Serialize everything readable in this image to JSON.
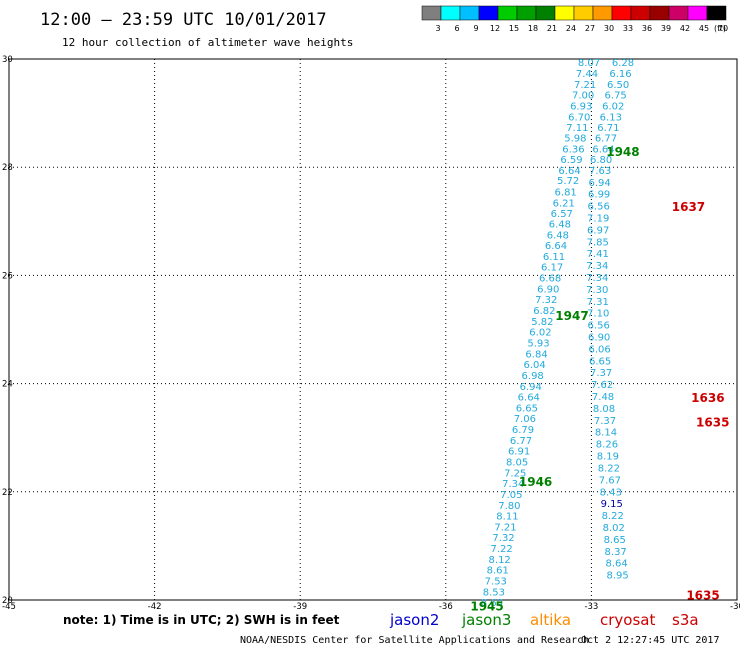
{
  "header": {
    "title": "12:00 – 23:59 UTC 10/01/2017",
    "subtitle": "12 hour collection of altimeter wave heights"
  },
  "colorbar": {
    "colors": [
      "#7f7f7f",
      "#00ffff",
      "#00bfff",
      "#0000ff",
      "#00cc00",
      "#00a000",
      "#008000",
      "#ffff00",
      "#ffcc00",
      "#ff9900",
      "#ff0000",
      "#cc0000",
      "#990000",
      "#cc0066",
      "#ff00ff",
      "#000000"
    ],
    "labels": [
      "3",
      "6",
      "9",
      "12",
      "15",
      "18",
      "21",
      "24",
      "27",
      "30",
      "33",
      "36",
      "39",
      "42",
      "45",
      "70"
    ],
    "unit": "(ft)"
  },
  "note_text": "note:  1) Time is in UTC;  2) SWH is in feet",
  "satellites": [
    {
      "name": "jason2",
      "color": "#0000cc"
    },
    {
      "name": "jason3",
      "color": "#008000"
    },
    {
      "name": "altika",
      "color": "#ff8c00"
    },
    {
      "name": "cryosat",
      "color": "#cc0000"
    },
    {
      "name": "s3a",
      "color": "#cc0000"
    }
  ],
  "footer": {
    "agency": "NOAA/NESDIS Center for Satellite Applications and Research",
    "timestamp": "Oct  2 12:27:45 UTC 2017"
  },
  "chart_data": {
    "type": "scatter",
    "xlim": [
      -45,
      -30
    ],
    "ylim": [
      20,
      30
    ],
    "xticks": [
      "-45",
      "-42",
      "-39",
      "-36",
      "-33",
      "-30"
    ],
    "yticks": [
      "20",
      "22",
      "24",
      "26",
      "28",
      "30"
    ],
    "grid": true,
    "value_color": "#22aadd",
    "track_left": {
      "points": [
        {
          "x": -33.05,
          "y": 29.94,
          "v": "8.07"
        },
        {
          "x": -33.09,
          "y": 29.74,
          "v": "7.44"
        },
        {
          "x": -33.13,
          "y": 29.54,
          "v": "7.21"
        },
        {
          "x": -33.17,
          "y": 29.34,
          "v": "7.00"
        },
        {
          "x": -33.21,
          "y": 29.14,
          "v": "6.93"
        },
        {
          "x": -33.25,
          "y": 28.94,
          "v": "6.70"
        },
        {
          "x": -33.29,
          "y": 28.74,
          "v": "7.11"
        },
        {
          "x": -33.33,
          "y": 28.55,
          "v": "5.98"
        },
        {
          "x": -33.37,
          "y": 28.35,
          "v": "6.36"
        },
        {
          "x": -33.41,
          "y": 28.15,
          "v": "6.59"
        },
        {
          "x": -33.45,
          "y": 27.95,
          "v": "6.64"
        },
        {
          "x": -33.48,
          "y": 27.76,
          "v": "5.72"
        },
        {
          "x": -33.53,
          "y": 27.55,
          "v": "6.81"
        },
        {
          "x": -33.57,
          "y": 27.35,
          "v": "6.21"
        },
        {
          "x": -33.61,
          "y": 27.15,
          "v": "6.57"
        },
        {
          "x": -33.65,
          "y": 26.96,
          "v": "6.48"
        },
        {
          "x": -33.69,
          "y": 26.76,
          "v": "6.48"
        },
        {
          "x": -33.73,
          "y": 26.56,
          "v": "6.64"
        },
        {
          "x": -33.77,
          "y": 26.36,
          "v": "6.11"
        },
        {
          "x": -33.81,
          "y": 26.16,
          "v": "6.17"
        },
        {
          "x": -33.85,
          "y": 25.96,
          "v": "6.68"
        },
        {
          "x": -33.89,
          "y": 25.76,
          "v": "6.90"
        },
        {
          "x": -33.93,
          "y": 25.56,
          "v": "7.32"
        },
        {
          "x": -33.97,
          "y": 25.36,
          "v": "6.82"
        },
        {
          "x": -34.01,
          "y": 25.16,
          "v": "5.82"
        },
        {
          "x": -34.05,
          "y": 24.96,
          "v": "6.02"
        },
        {
          "x": -34.09,
          "y": 24.76,
          "v": "5.93"
        },
        {
          "x": -34.13,
          "y": 24.56,
          "v": "6.84"
        },
        {
          "x": -34.17,
          "y": 24.36,
          "v": "6.04"
        },
        {
          "x": -34.21,
          "y": 24.16,
          "v": "6.98"
        },
        {
          "x": -34.25,
          "y": 23.96,
          "v": "6.94"
        },
        {
          "x": -34.29,
          "y": 23.76,
          "v": "6.64"
        },
        {
          "x": -34.33,
          "y": 23.56,
          "v": "6.65"
        },
        {
          "x": -34.37,
          "y": 23.36,
          "v": "7.06"
        },
        {
          "x": -34.41,
          "y": 23.16,
          "v": "6.79"
        },
        {
          "x": -34.45,
          "y": 22.96,
          "v": "6.77"
        },
        {
          "x": -34.49,
          "y": 22.76,
          "v": "6.91"
        },
        {
          "x": -34.53,
          "y": 22.56,
          "v": "8.05"
        },
        {
          "x": -34.57,
          "y": 22.36,
          "v": "7.25"
        },
        {
          "x": -34.61,
          "y": 22.16,
          "v": "7.34"
        },
        {
          "x": -34.65,
          "y": 21.96,
          "v": "7.05"
        },
        {
          "x": -34.69,
          "y": 21.76,
          "v": "7.80"
        },
        {
          "x": -34.73,
          "y": 21.56,
          "v": "8.11"
        },
        {
          "x": -34.77,
          "y": 21.36,
          "v": "7.21"
        },
        {
          "x": -34.81,
          "y": 21.16,
          "v": "7.32"
        },
        {
          "x": -34.85,
          "y": 20.96,
          "v": "7.22"
        },
        {
          "x": -34.89,
          "y": 20.76,
          "v": "8.12"
        },
        {
          "x": -34.93,
          "y": 20.56,
          "v": "8.61"
        },
        {
          "x": -34.97,
          "y": 20.36,
          "v": "7.53"
        },
        {
          "x": -35.01,
          "y": 20.16,
          "v": "8.53"
        },
        {
          "x": -35.05,
          "y": 19.96,
          "v": "8.68"
        }
      ]
    },
    "track_right": {
      "points": [
        {
          "x": -32.35,
          "y": 29.94,
          "v": "6.28"
        },
        {
          "x": -32.4,
          "y": 29.74,
          "v": "6.16"
        },
        {
          "x": -32.45,
          "y": 29.54,
          "v": "6.50"
        },
        {
          "x": -32.5,
          "y": 29.34,
          "v": "6.75"
        },
        {
          "x": -32.55,
          "y": 29.14,
          "v": "6.02"
        },
        {
          "x": -32.6,
          "y": 28.94,
          "v": "6.13"
        },
        {
          "x": -32.65,
          "y": 28.74,
          "v": "6.71"
        },
        {
          "x": -32.7,
          "y": 28.55,
          "v": "6.77"
        },
        {
          "x": -32.75,
          "y": 28.35,
          "v": "6.64"
        },
        {
          "x": -32.8,
          "y": 28.15,
          "v": "6.80"
        },
        {
          "x": -32.82,
          "y": 27.95,
          "v": "7.63"
        },
        {
          "x": -32.83,
          "y": 27.73,
          "v": "6.94"
        },
        {
          "x": -32.84,
          "y": 27.51,
          "v": "6.99"
        },
        {
          "x": -32.85,
          "y": 27.29,
          "v": "6.56"
        },
        {
          "x": -32.86,
          "y": 27.07,
          "v": "7.19"
        },
        {
          "x": -32.86,
          "y": 26.85,
          "v": "6.97"
        },
        {
          "x": -32.87,
          "y": 26.63,
          "v": "7.85"
        },
        {
          "x": -32.87,
          "y": 26.41,
          "v": "7.41"
        },
        {
          "x": -32.88,
          "y": 26.19,
          "v": "7.34"
        },
        {
          "x": -32.88,
          "y": 25.97,
          "v": "7.34"
        },
        {
          "x": -32.88,
          "y": 25.75,
          "v": "7.30"
        },
        {
          "x": -32.87,
          "y": 25.53,
          "v": "7.31"
        },
        {
          "x": -32.86,
          "y": 25.31,
          "v": "7.10"
        },
        {
          "x": -32.85,
          "y": 25.09,
          "v": "6.56"
        },
        {
          "x": -32.84,
          "y": 24.87,
          "v": "6.90"
        },
        {
          "x": -32.83,
          "y": 24.65,
          "v": "6.06"
        },
        {
          "x": -32.82,
          "y": 24.43,
          "v": "6.65"
        },
        {
          "x": -32.8,
          "y": 24.21,
          "v": "7.37"
        },
        {
          "x": -32.78,
          "y": 23.99,
          "v": "7.62"
        },
        {
          "x": -32.76,
          "y": 23.77,
          "v": "7.48"
        },
        {
          "x": -32.74,
          "y": 23.55,
          "v": "8.08"
        },
        {
          "x": -32.72,
          "y": 23.33,
          "v": "7.37"
        },
        {
          "x": -32.7,
          "y": 23.11,
          "v": "8.14"
        },
        {
          "x": -32.68,
          "y": 22.89,
          "v": "8.26"
        },
        {
          "x": -32.66,
          "y": 22.67,
          "v": "8.19"
        },
        {
          "x": -32.64,
          "y": 22.45,
          "v": "8.22"
        },
        {
          "x": -32.62,
          "y": 22.23,
          "v": "7.67"
        },
        {
          "x": -32.6,
          "y": 22.01,
          "v": "8.43"
        },
        {
          "x": -32.58,
          "y": 21.79,
          "v": "9.15",
          "dark": true
        },
        {
          "x": -32.56,
          "y": 21.57,
          "v": "8.22"
        },
        {
          "x": -32.54,
          "y": 21.35,
          "v": "8.02"
        },
        {
          "x": -32.52,
          "y": 21.13,
          "v": "8.65"
        },
        {
          "x": -32.5,
          "y": 20.91,
          "v": "8.37"
        },
        {
          "x": -32.48,
          "y": 20.69,
          "v": "8.64"
        },
        {
          "x": -32.46,
          "y": 20.47,
          "v": "8.95"
        }
      ]
    },
    "time_labels": [
      {
        "text": "1948",
        "x": -32.35,
        "y": 28.3,
        "color": "#008000"
      },
      {
        "text": "1637",
        "x": -31.0,
        "y": 27.28,
        "color": "#cc0000"
      },
      {
        "text": "1947",
        "x": -33.4,
        "y": 25.27,
        "color": "#008000"
      },
      {
        "text": "1946",
        "x": -34.15,
        "y": 22.2,
        "color": "#008000"
      },
      {
        "text": "1636",
        "x": -30.6,
        "y": 23.75,
        "color": "#cc0000"
      },
      {
        "text": "1635",
        "x": -30.5,
        "y": 23.3,
        "color": "#cc0000"
      },
      {
        "text": "1945",
        "x": -35.15,
        "y": 19.9,
        "color": "#008000"
      },
      {
        "text": "1635",
        "x": -30.7,
        "y": 20.1,
        "color": "#cc0000"
      }
    ]
  }
}
